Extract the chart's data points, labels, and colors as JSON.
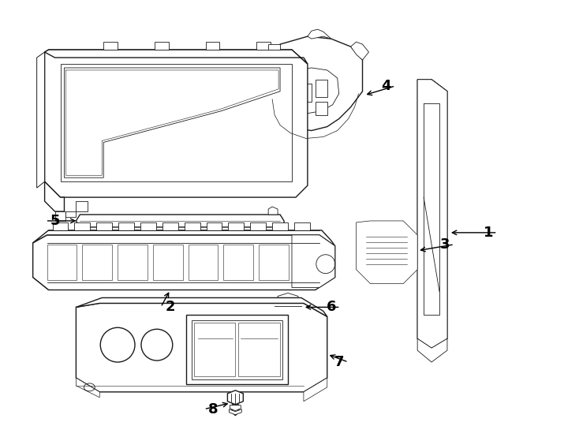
{
  "bg_color": "#ffffff",
  "line_color": "#1a1a1a",
  "text_color": "#000000",
  "figsize": [
    7.34,
    5.4
  ],
  "dpi": 100,
  "lw_main": 1.0,
  "lw_detail": 0.6,
  "lw_thin": 0.4
}
